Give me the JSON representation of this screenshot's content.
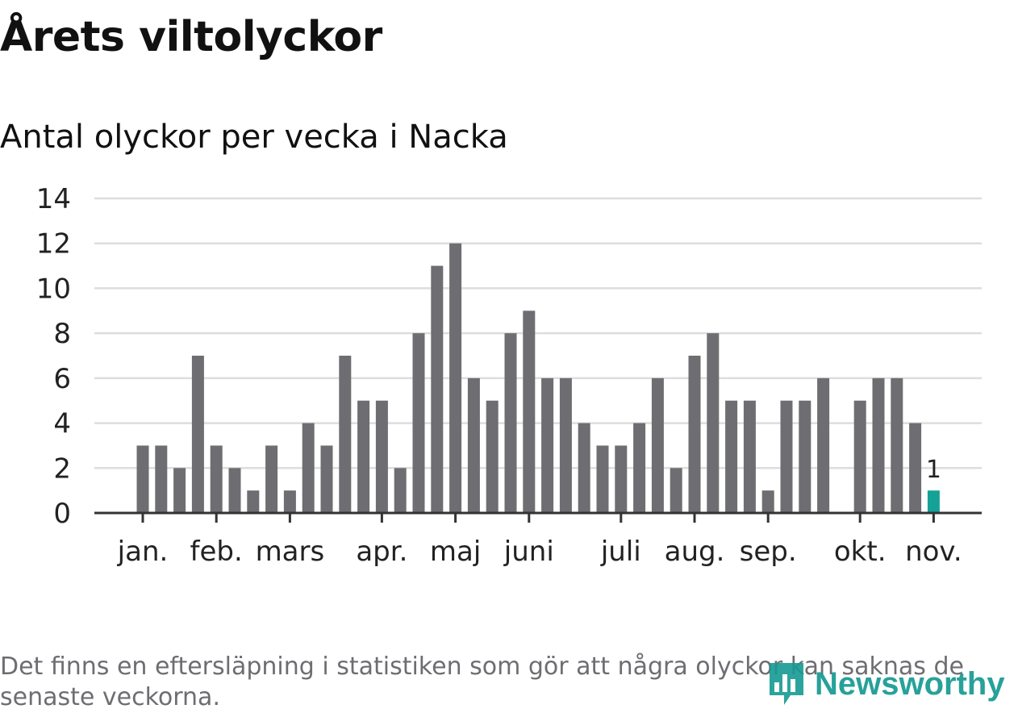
{
  "title": "Årets viltolyckor",
  "subtitle": "Antal olyckor per vecka i Nacka",
  "footnote": "Det finns en eftersläpning i statistiken som gör att några olyckor kan saknas de senaste veckorna.",
  "logo": {
    "text": "Newsworthy",
    "icon": "newsworthy-logo-icon"
  },
  "colors": {
    "bar": "#6e6d72",
    "highlight": "#14a298",
    "grid": "#dddddd",
    "axis": "#333333",
    "logo": "#159a92"
  },
  "chart_data": {
    "type": "bar",
    "title": "Antal olyckor per vecka i Nacka",
    "xlabel": "",
    "ylabel": "",
    "ylim": [
      0,
      14
    ],
    "yticks": [
      0,
      2,
      4,
      6,
      8,
      10,
      12,
      14
    ],
    "x": [
      1,
      2,
      3,
      4,
      5,
      6,
      7,
      8,
      9,
      10,
      11,
      12,
      13,
      14,
      15,
      16,
      17,
      18,
      19,
      20,
      21,
      22,
      23,
      24,
      25,
      26,
      27,
      28,
      29,
      30,
      31,
      32,
      33,
      34,
      35,
      36,
      37,
      38,
      39,
      40,
      41,
      42,
      43,
      44
    ],
    "values": [
      3,
      3,
      2,
      7,
      3,
      2,
      1,
      3,
      1,
      4,
      3,
      7,
      5,
      5,
      2,
      8,
      11,
      12,
      6,
      5,
      8,
      9,
      6,
      6,
      4,
      3,
      3,
      4,
      6,
      2,
      7,
      8,
      5,
      5,
      1,
      5,
      5,
      6,
      0,
      5,
      6,
      6,
      4,
      1
    ],
    "highlight_index": 43,
    "highlight_label": "1",
    "month_labels": [
      {
        "label": "jan.",
        "week": 1
      },
      {
        "label": "feb.",
        "week": 5
      },
      {
        "label": "mars",
        "week": 9
      },
      {
        "label": "apr.",
        "week": 14
      },
      {
        "label": "maj",
        "week": 18
      },
      {
        "label": "juni",
        "week": 22
      },
      {
        "label": "juli",
        "week": 27
      },
      {
        "label": "aug.",
        "week": 31
      },
      {
        "label": "sep.",
        "week": 35
      },
      {
        "label": "okt.",
        "week": 40
      },
      {
        "label": "nov.",
        "week": 44
      }
    ],
    "grid": true,
    "legend": "none"
  }
}
